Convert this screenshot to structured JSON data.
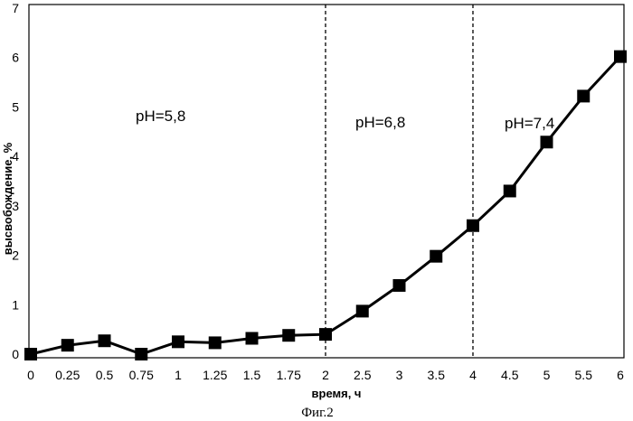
{
  "chart_data": {
    "type": "line",
    "x_categories": [
      "0",
      "0.25",
      "0.5",
      "0.75",
      "1",
      "1.25",
      "1.5",
      "1.75",
      "2",
      "2.5",
      "3",
      "3.5",
      "4",
      "4.5",
      "5",
      "5.5",
      "6"
    ],
    "series": [
      {
        "values": [
          0.0,
          0.18,
          0.27,
          0.0,
          0.25,
          0.23,
          0.32,
          0.38,
          0.4,
          0.87,
          1.39,
          1.98,
          2.6,
          3.3,
          4.29,
          5.22,
          6.02
        ]
      }
    ],
    "xlabel": "время, ч",
    "ylabel": "высвобождение, %",
    "ylim": [
      0,
      7
    ],
    "y_ticks": [
      "0",
      "1",
      "2",
      "3",
      "4",
      "5",
      "6",
      "7"
    ],
    "grid": false,
    "marker": "square",
    "line_color": "#000000",
    "regions": [
      {
        "label": "pH=5,8"
      },
      {
        "label": "pH=6,8"
      },
      {
        "label": "pH=7,4"
      }
    ],
    "boundaries_at": [
      "2",
      "4"
    ],
    "caption": "Фиг.2"
  }
}
